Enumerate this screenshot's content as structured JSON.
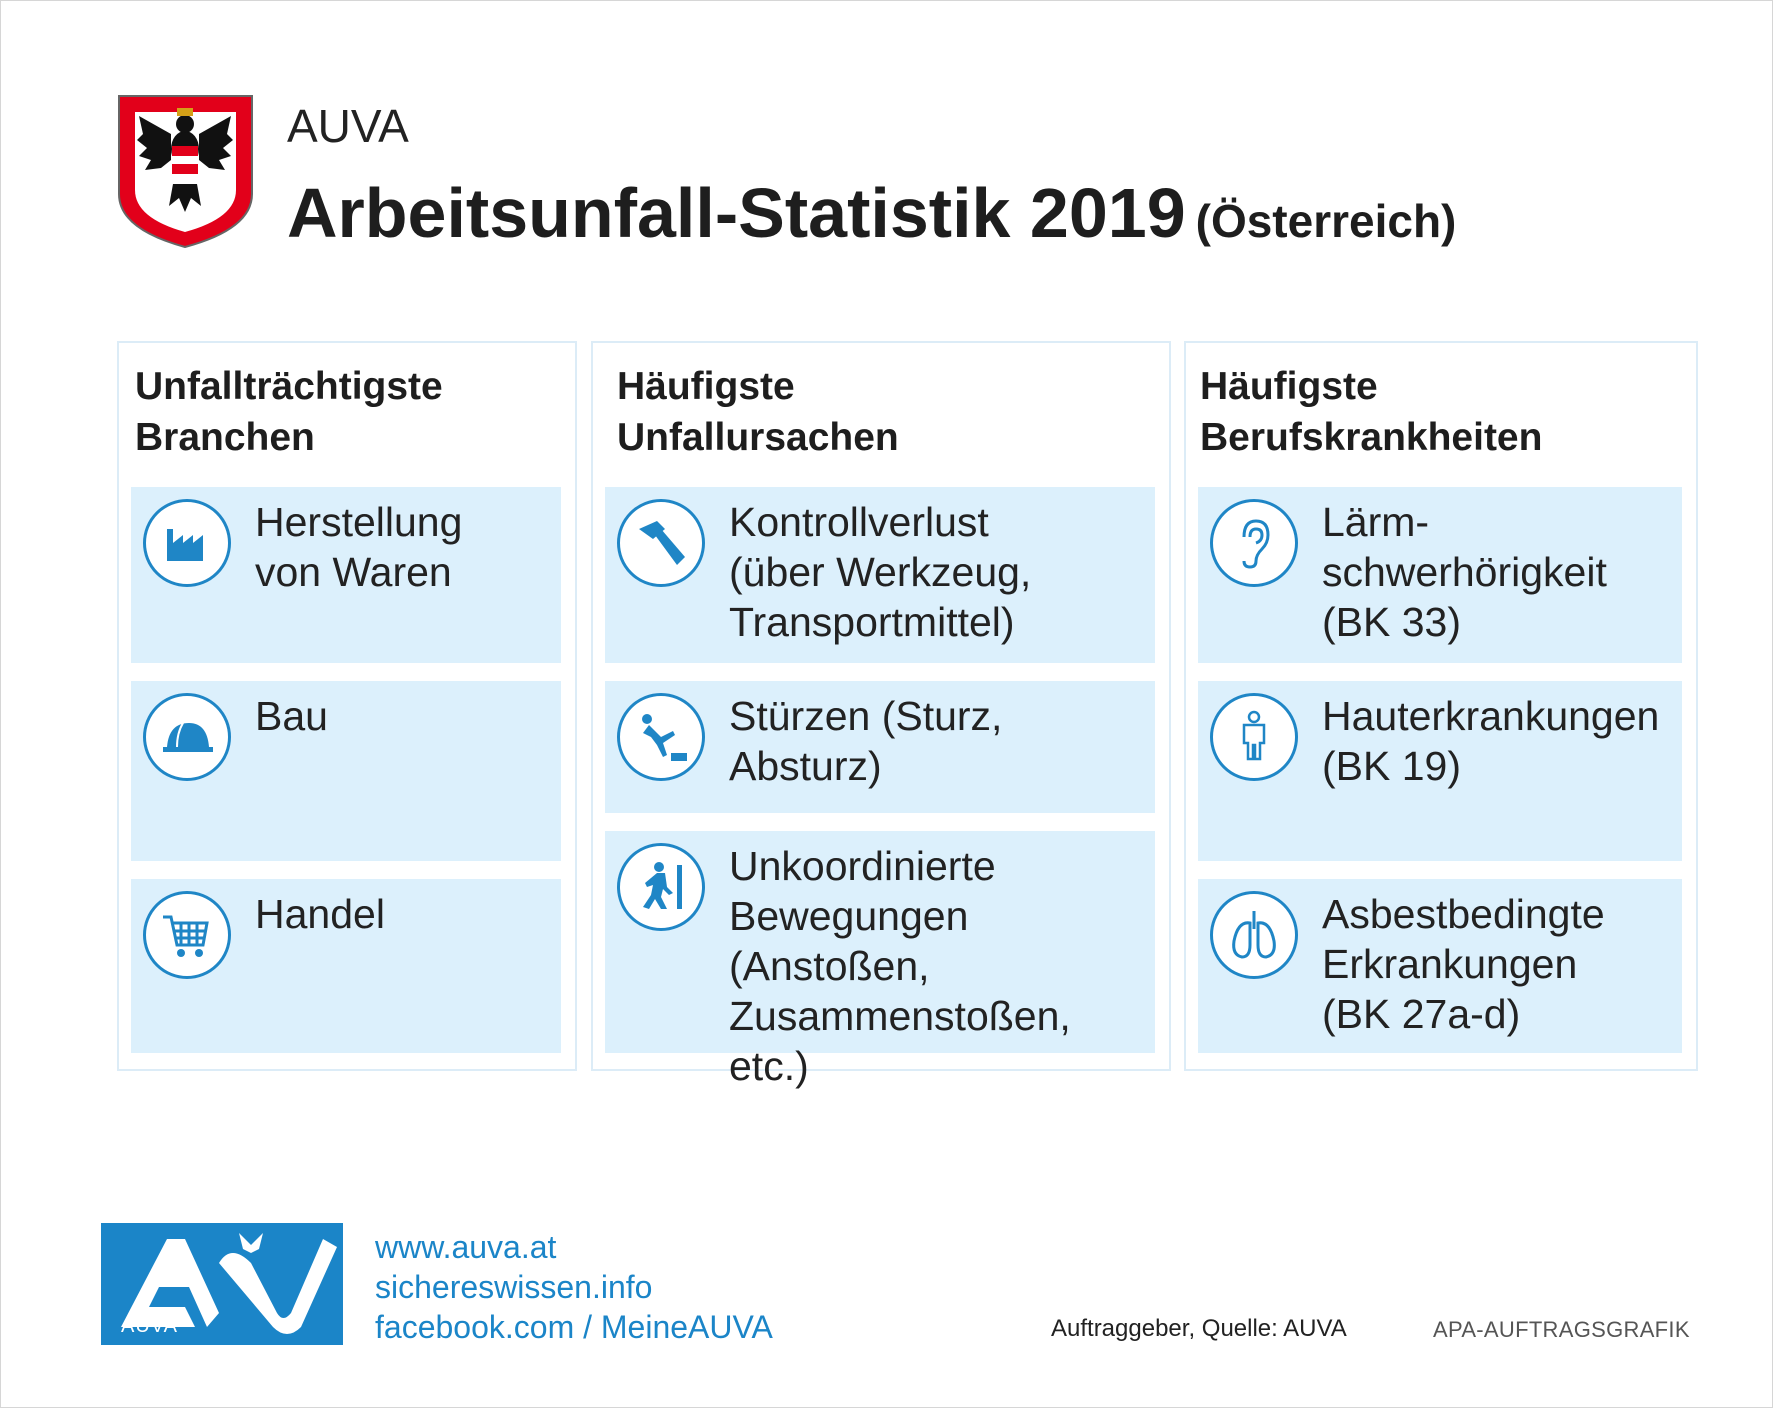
{
  "header": {
    "org": "AUVA",
    "title": "Arbeitsunfall-Statistik 2019",
    "country": "(Österreich)"
  },
  "columns": [
    {
      "title_line1": "Unfallträchtigste",
      "title_line2": "Branchen",
      "items": [
        {
          "icon": "factory-icon",
          "text": "Herstellung\nvon Waren"
        },
        {
          "icon": "hard-hat-icon",
          "text": "Bau"
        },
        {
          "icon": "shopping-cart-icon",
          "text": "Handel"
        }
      ]
    },
    {
      "title_line1": "Häufigste",
      "title_line2": "Unfallursachen",
      "items": [
        {
          "icon": "hammer-icon",
          "text": "Kontrollverlust\n(über Werkzeug,\nTransportmittel)"
        },
        {
          "icon": "falling-person-icon",
          "text": "Stürzen (Sturz,\nAbsturz)"
        },
        {
          "icon": "walking-person-icon",
          "text": "Unkoordinierte\nBewegungen\n(Anstoßen,\nZusammenstoßen, etc.)"
        }
      ]
    },
    {
      "title_line1": "Häufigste",
      "title_line2": "Berufskrankheiten",
      "items": [
        {
          "icon": "ear-icon",
          "text": "Lärm-\nschwerhörigkeit\n(BK 33)"
        },
        {
          "icon": "human-body-icon",
          "text": "Hauterkrankungen\n(BK 19)"
        },
        {
          "icon": "lungs-icon",
          "text": "Asbestbedingte\nErkrankungen\n(BK 27a-d)"
        }
      ]
    }
  ],
  "footer": {
    "logo_text": "AUVA",
    "links": [
      "www.auva.at",
      "sichereswissen.info",
      "facebook.com / MeineAUVA"
    ],
    "source": "Auftraggeber, Quelle: AUVA",
    "credit": "APA-AUFTRAGSGRAFIK"
  },
  "colors": {
    "accent_blue": "#1b85c8",
    "card_bg": "#dcf0fc",
    "austria_red": "#e2001a"
  }
}
